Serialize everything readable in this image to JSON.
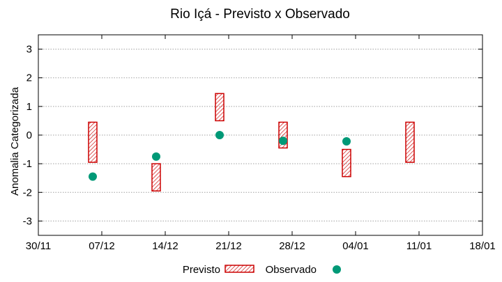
{
  "chart_data": {
    "type": "scatter",
    "title": "Rio Içá - Previsto x Observado",
    "xlabel": "",
    "ylabel": "Anomalia Categorizada",
    "x_range": [
      "2019-11-30",
      "2020-01-18"
    ],
    "x_ticks": [
      {
        "date": "2019-11-30",
        "label": "30/11"
      },
      {
        "date": "2019-12-07",
        "label": "07/12"
      },
      {
        "date": "2019-12-14",
        "label": "14/12"
      },
      {
        "date": "2019-12-21",
        "label": "21/12"
      },
      {
        "date": "2019-12-28",
        "label": "28/12"
      },
      {
        "date": "2020-01-04",
        "label": "04/01"
      },
      {
        "date": "2020-01-11",
        "label": "11/01"
      },
      {
        "date": "2020-01-18",
        "label": "18/01"
      }
    ],
    "ylim": [
      -3.5,
      3.5
    ],
    "y_ticks": [
      -3,
      -2,
      -1,
      0,
      1,
      2,
      3
    ],
    "grid": "horizontal",
    "legend_placement": "bottom",
    "series": [
      {
        "name": "Previsto",
        "kind": "range-box",
        "color": "#cc0000",
        "points": [
          {
            "x": "2019-12-06",
            "low": -0.95,
            "high": 0.45
          },
          {
            "x": "2019-12-13",
            "low": -1.95,
            "high": -1.0
          },
          {
            "x": "2019-12-20",
            "low": 0.5,
            "high": 1.45
          },
          {
            "x": "2019-12-27",
            "low": -0.45,
            "high": 0.45
          },
          {
            "x": "2020-01-03",
            "low": -1.45,
            "high": -0.5
          },
          {
            "x": "2020-01-10",
            "low": -0.95,
            "high": 0.45
          }
        ]
      },
      {
        "name": "Observado",
        "kind": "point",
        "color": "#009977",
        "points": [
          {
            "x": "2019-12-06",
            "y": -1.45
          },
          {
            "x": "2019-12-13",
            "y": -0.75
          },
          {
            "x": "2019-12-20",
            "y": 0.0
          },
          {
            "x": "2019-12-27",
            "y": -0.2
          },
          {
            "x": "2020-01-03",
            "y": -0.22
          }
        ]
      }
    ]
  }
}
